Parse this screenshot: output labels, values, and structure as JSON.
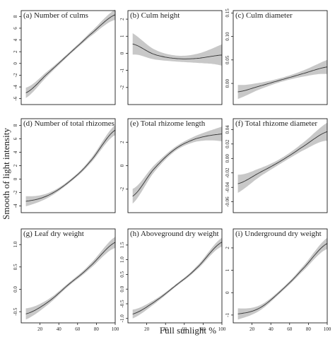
{
  "figure": {
    "ylabel": "Smooth of light intensity",
    "xlabel": "Full sunlight %",
    "band_color": "#c8c8c8",
    "line_color": "#333333",
    "axis_color": "#000000"
  },
  "chart_data": [
    {
      "type": "area",
      "title": "(a) Number of culms",
      "x": [
        5,
        27.5,
        50,
        72.5,
        100
      ],
      "y": [
        -5,
        -1.8,
        1.5,
        4.8,
        8.3
      ],
      "band": 0.7,
      "ylim": [
        -7,
        9
      ],
      "xlim": [
        0,
        100
      ],
      "yticks": [
        -6,
        -4,
        -2,
        0,
        2,
        4,
        6,
        8
      ],
      "xticks": []
    },
    {
      "type": "area",
      "title": "(b) Culm height",
      "x": [
        5,
        27.5,
        50,
        72.5,
        100
      ],
      "y": [
        0.55,
        -0.05,
        -0.3,
        -0.3,
        -0.1
      ],
      "band": 0.5,
      "ylim": [
        -3,
        2.5
      ],
      "xlim": [
        0,
        100
      ],
      "yticks": [
        -2,
        -1,
        0,
        1,
        2
      ],
      "xticks": []
    },
    {
      "type": "area",
      "title": "(c) Culm diameter",
      "x": [
        5,
        27.5,
        50,
        72.5,
        100
      ],
      "y": [
        -0.018,
        -0.006,
        0.007,
        0.02,
        0.035
      ],
      "band": 0.012,
      "ylim": [
        -0.045,
        0.155
      ],
      "xlim": [
        0,
        100
      ],
      "yticks": [
        0.0,
        0.05,
        0.1,
        0.15
      ],
      "xticks": []
    },
    {
      "type": "area",
      "title": "(d) Number of total rhizomes",
      "x": [
        5,
        27.5,
        50,
        72.5,
        100
      ],
      "y": [
        -3.3,
        -2.5,
        -0.5,
        2.5,
        7.3
      ],
      "band": 0.6,
      "ylim": [
        -5,
        9
      ],
      "xlim": [
        0,
        100
      ],
      "yticks": [
        -4,
        -2,
        0,
        2,
        4,
        6,
        8
      ],
      "xticks": []
    },
    {
      "type": "area",
      "title": "(e) Total rhizome length",
      "x": [
        5,
        27.5,
        50,
        72.5,
        100
      ],
      "y": [
        -2.6,
        -0.3,
        1.4,
        2.3,
        2.7
      ],
      "band": 0.5,
      "ylim": [
        -4,
        4
      ],
      "xlim": [
        0,
        100
      ],
      "yticks": [
        -2,
        0,
        2
      ],
      "xticks": []
    },
    {
      "type": "area",
      "title": "(f) Total rhizome diameter",
      "x": [
        5,
        27.5,
        50,
        72.5,
        100
      ],
      "y": [
        -0.035,
        -0.02,
        -0.004,
        0.015,
        0.037
      ],
      "band": 0.01,
      "ylim": [
        -0.075,
        0.055
      ],
      "xlim": [
        0,
        100
      ],
      "yticks": [
        -0.06,
        -0.04,
        -0.02,
        0.0,
        0.02,
        0.04
      ],
      "xticks": []
    },
    {
      "type": "area",
      "title": "(g) Leaf dry weight",
      "x": [
        5,
        27.5,
        50,
        72.5,
        100
      ],
      "y": [
        -0.55,
        -0.3,
        0.1,
        0.5,
        1.05
      ],
      "band": 0.1,
      "ylim": [
        -0.75,
        1.35
      ],
      "xlim": [
        0,
        100
      ],
      "yticks": [
        -0.5,
        0.0,
        0.5,
        1.0
      ],
      "xticks": [
        20,
        40,
        60,
        80,
        100
      ]
    },
    {
      "type": "area",
      "title": "(h) Aboveground dry weight",
      "x": [
        5,
        27.5,
        50,
        72.5,
        100
      ],
      "y": [
        -0.85,
        -0.45,
        0.1,
        0.7,
        1.6
      ],
      "band": 0.12,
      "ylim": [
        -1.15,
        2.05
      ],
      "xlim": [
        0,
        100
      ],
      "yticks": [
        -1.0,
        -0.5,
        0.0,
        0.5,
        1.0,
        1.5
      ],
      "xticks": [
        20,
        40,
        60,
        80,
        100
      ]
    },
    {
      "type": "area",
      "title": "(i) Underground dry weight",
      "x": [
        5,
        27.5,
        50,
        72.5,
        100
      ],
      "y": [
        -0.95,
        -0.7,
        0.05,
        1.0,
        2.2
      ],
      "band": 0.2,
      "ylim": [
        -1.35,
        2.85
      ],
      "xlim": [
        0,
        100
      ],
      "yticks": [
        -1,
        0,
        1,
        2
      ],
      "xticks": [
        20,
        40,
        60,
        80,
        100
      ]
    }
  ]
}
